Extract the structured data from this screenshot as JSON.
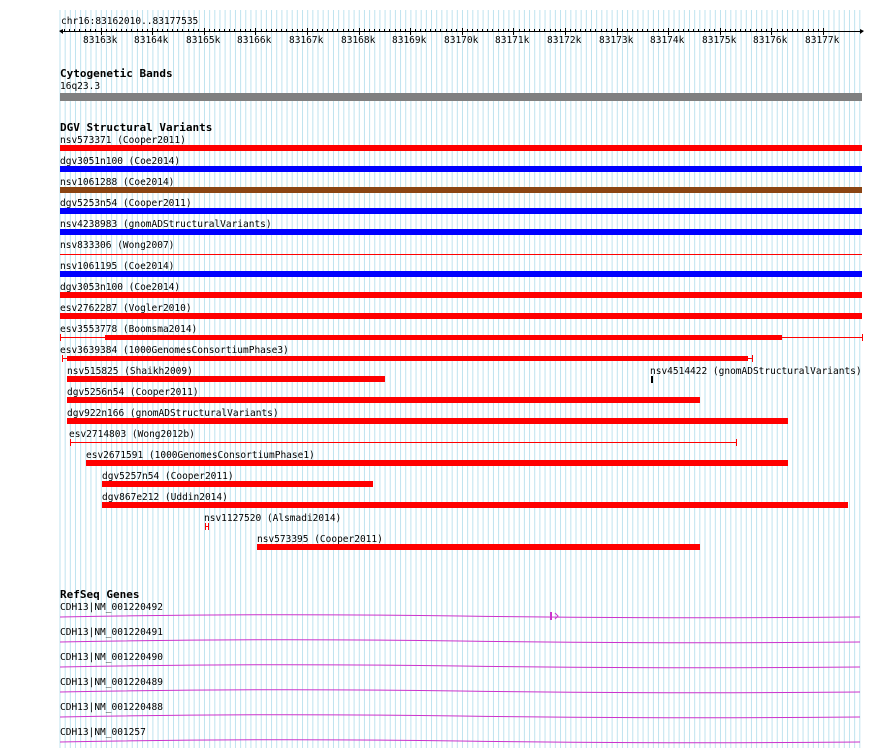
{
  "ruler": {
    "label": "chr16:83162010..83177535",
    "ticks": [
      "83163k",
      "83164k",
      "83165k",
      "83166k",
      "83167k",
      "83168k",
      "83169k",
      "83170k",
      "83171k",
      "83172k",
      "83173k",
      "83174k",
      "83175k",
      "83176k",
      "83177k"
    ]
  },
  "cytobands": {
    "title": "Cytogenetic Bands",
    "band": "16q23.3",
    "color": "#808080"
  },
  "dgv": {
    "title": "DGV Structural Variants",
    "colors": {
      "gain": "#ff0000",
      "loss": "#0000ff",
      "complex": "#8b4513"
    },
    "features": [
      {
        "id": "nsv573371",
        "label": "nsv573371 (Cooper2011)",
        "color": "#ff0000",
        "style": "bar"
      },
      {
        "id": "dgv3051n100",
        "label": "dgv3051n100 (Coe2014)",
        "color": "#0000ff",
        "style": "bar"
      },
      {
        "id": "nsv1061288",
        "label": "nsv1061288 (Coe2014)",
        "color": "#8b4513",
        "style": "bar"
      },
      {
        "id": "dgv5253n54",
        "label": "dgv5253n54 (Cooper2011)",
        "color": "#0000ff",
        "style": "bar"
      },
      {
        "id": "nsv4238983",
        "label": "nsv4238983 (gnomADStructuralVariants)",
        "color": "#0000ff",
        "style": "bar"
      },
      {
        "id": "nsv833306",
        "label": "nsv833306 (Wong2007)",
        "color": "#ff0000",
        "style": "thin"
      },
      {
        "id": "nsv1061195",
        "label": "nsv1061195 (Coe2014)",
        "color": "#0000ff",
        "style": "bar"
      },
      {
        "id": "dgv3053n100",
        "label": "dgv3053n100 (Coe2014)",
        "color": "#ff0000",
        "style": "bar"
      },
      {
        "id": "esv2762287",
        "label": "esv2762287 (Vogler2010)",
        "color": "#ff0000",
        "style": "bar"
      },
      {
        "id": "esv3553778",
        "label": "esv3553778 (Boomsma2014)",
        "color": "#ff0000",
        "style": "capped"
      },
      {
        "id": "esv3639384",
        "label": "esv3639384 (1000GenomesConsortiumPhase3)",
        "color": "#ff0000",
        "style": "capped"
      },
      {
        "id": "nsv515825",
        "label": "nsv515825 (Shaikh2009)",
        "color": "#ff0000",
        "style": "bar"
      },
      {
        "id": "nsv4514422",
        "label": "nsv4514422 (gnomADStructuralVariants)",
        "color": "#000000",
        "style": "point"
      },
      {
        "id": "dgv5256n54",
        "label": "dgv5256n54 (Cooper2011)",
        "color": "#ff0000",
        "style": "bar"
      },
      {
        "id": "dgv922n166",
        "label": "dgv922n166 (gnomADStructuralVariants)",
        "color": "#ff0000",
        "style": "bar"
      },
      {
        "id": "esv2714803",
        "label": "esv2714803 (Wong2012b)",
        "color": "#ff0000",
        "style": "capped"
      },
      {
        "id": "esv2671591",
        "label": "esv2671591 (1000GenomesConsortiumPhase1)",
        "color": "#ff0000",
        "style": "bar"
      },
      {
        "id": "dgv5257n54",
        "label": "dgv5257n54 (Cooper2011)",
        "color": "#ff0000",
        "style": "bar"
      },
      {
        "id": "dgv867e212",
        "label": "dgv867e212 (Uddin2014)",
        "color": "#ff0000",
        "style": "bar"
      },
      {
        "id": "nsv1127520",
        "label": "nsv1127520 (Alsmadi2014)",
        "color": "#ff0000",
        "style": "small"
      },
      {
        "id": "nsv573395",
        "label": "nsv573395 (Cooper2011)",
        "color": "#ff0000",
        "style": "bar"
      }
    ]
  },
  "refseq": {
    "title": "RefSeq Genes",
    "color": "#cc33cc",
    "genes": [
      {
        "label": "CDH13|NM_001220492"
      },
      {
        "label": "CDH13|NM_001220491"
      },
      {
        "label": "CDH13|NM_001220490"
      },
      {
        "label": "CDH13|NM_001220489"
      },
      {
        "label": "CDH13|NM_001220488"
      },
      {
        "label": "CDH13|NM_001257"
      }
    ]
  }
}
